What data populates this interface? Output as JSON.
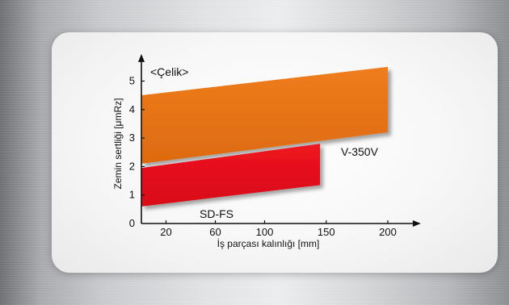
{
  "chart_data": {
    "type": "area",
    "title": "<Çelik>",
    "xlabel": "İş parçası kalınlığı [mm]",
    "ylabel": "Zemin sertliği [μmRz]",
    "x_ticks": [
      "20",
      "60",
      "100",
      "150",
      "200"
    ],
    "x_tick_values": [
      20,
      60,
      100,
      150,
      200
    ],
    "y_ticks": [
      "0",
      "1",
      "2",
      "3",
      "4",
      "5"
    ],
    "y_tick_values": [
      0,
      1,
      2,
      3,
      4,
      5
    ],
    "xlim": [
      0,
      215
    ],
    "ylim": [
      0,
      5.5
    ],
    "series": [
      {
        "name": "V-350V",
        "color": "#e36f12",
        "x": [
          0,
          200
        ],
        "lower": [
          2.1,
          3.2
        ],
        "upper": [
          4.5,
          5.5
        ]
      },
      {
        "name": "SD-FS",
        "color": "#e30b1c",
        "x": [
          0,
          145
        ],
        "lower": [
          0.6,
          1.35
        ],
        "upper": [
          1.95,
          2.8
        ]
      }
    ]
  }
}
